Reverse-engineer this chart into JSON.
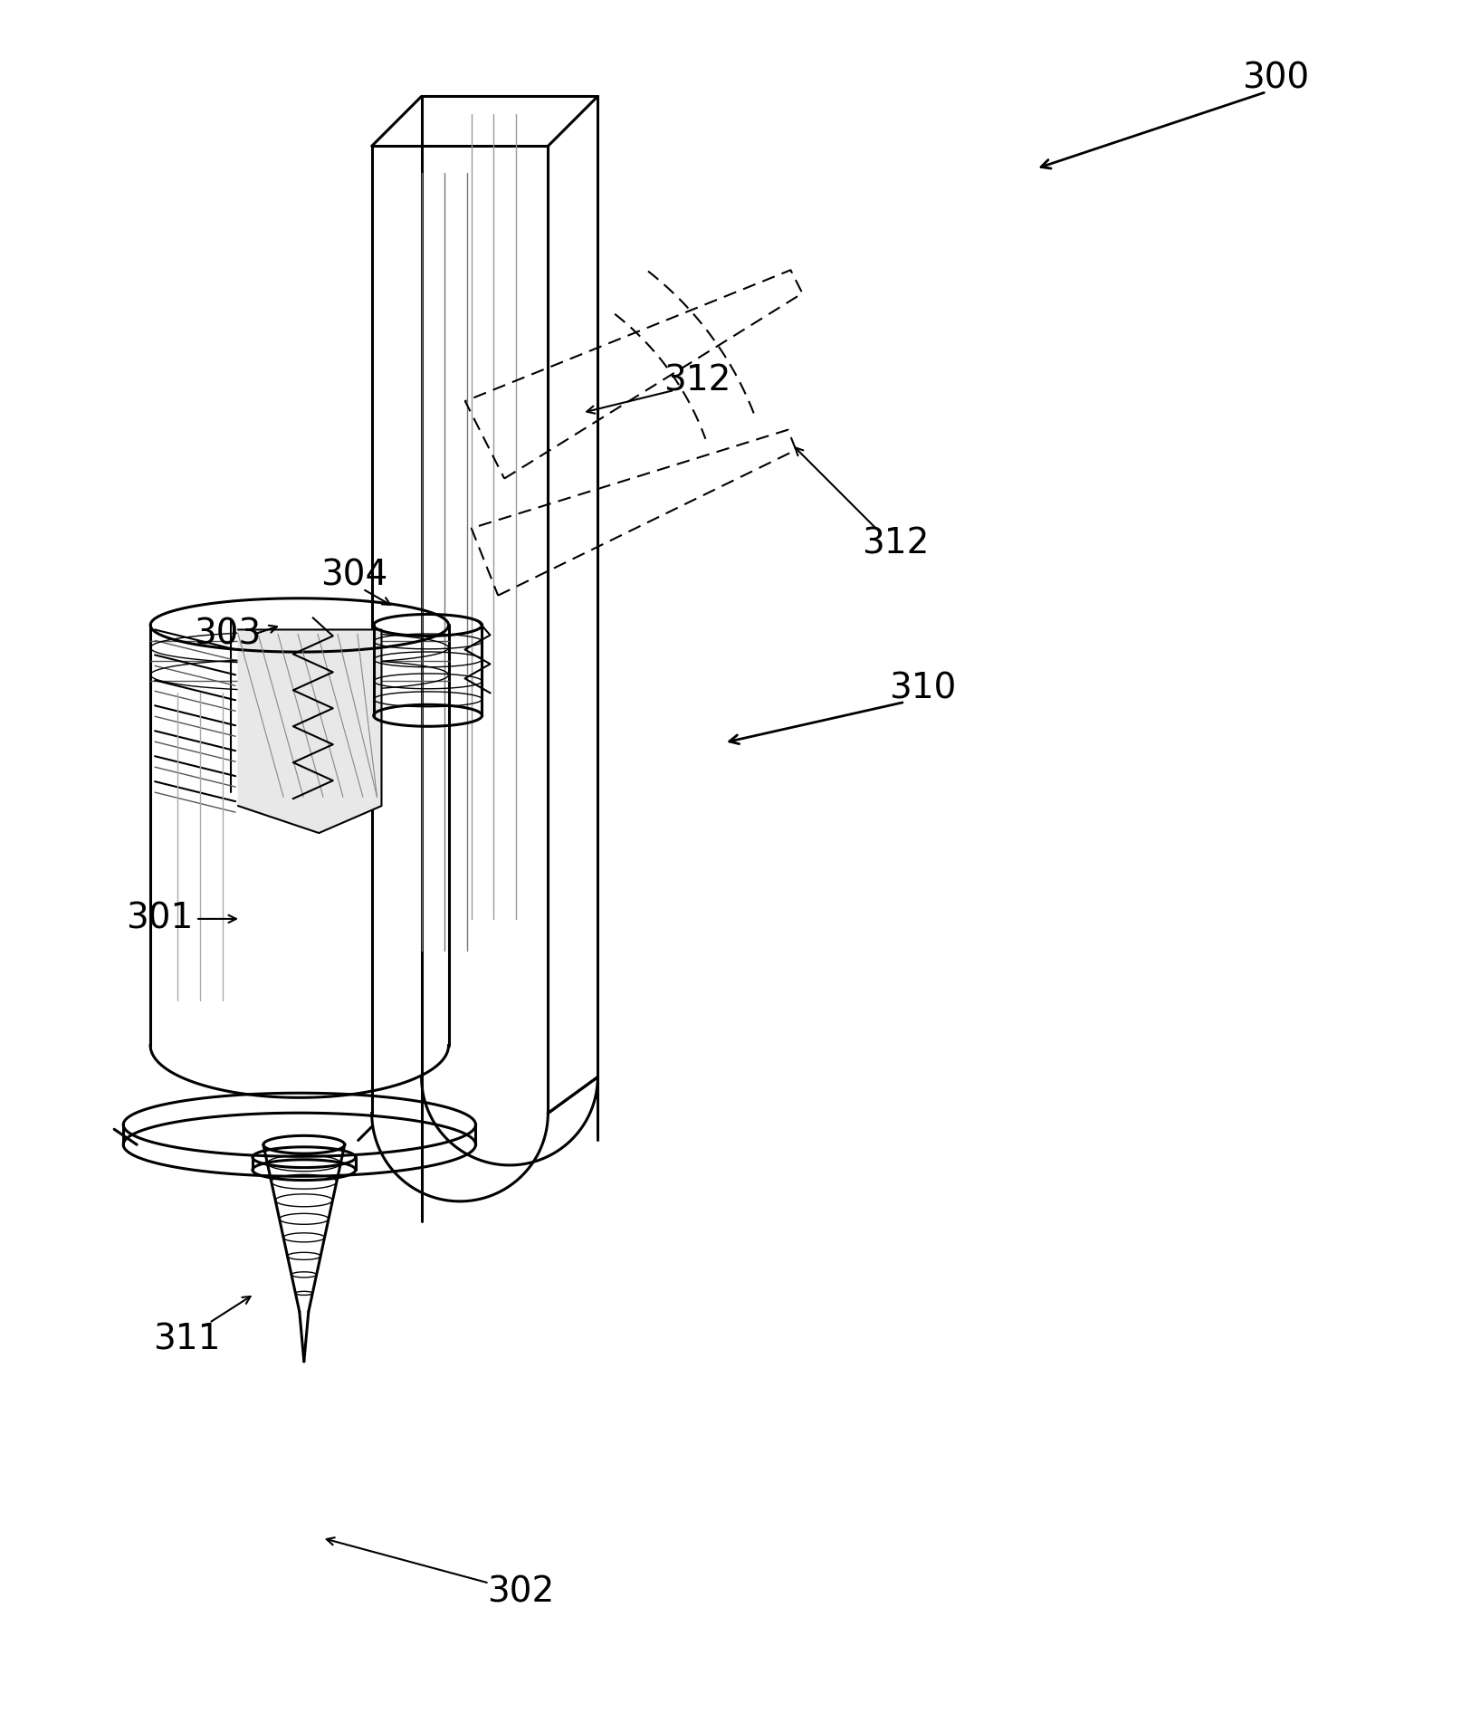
{
  "bg_color": "#ffffff",
  "line_color": "#000000",
  "fig_width": 16.25,
  "fig_height": 19.13,
  "lw_main": 2.2,
  "lw_med": 1.5,
  "lw_thin": 1.0
}
